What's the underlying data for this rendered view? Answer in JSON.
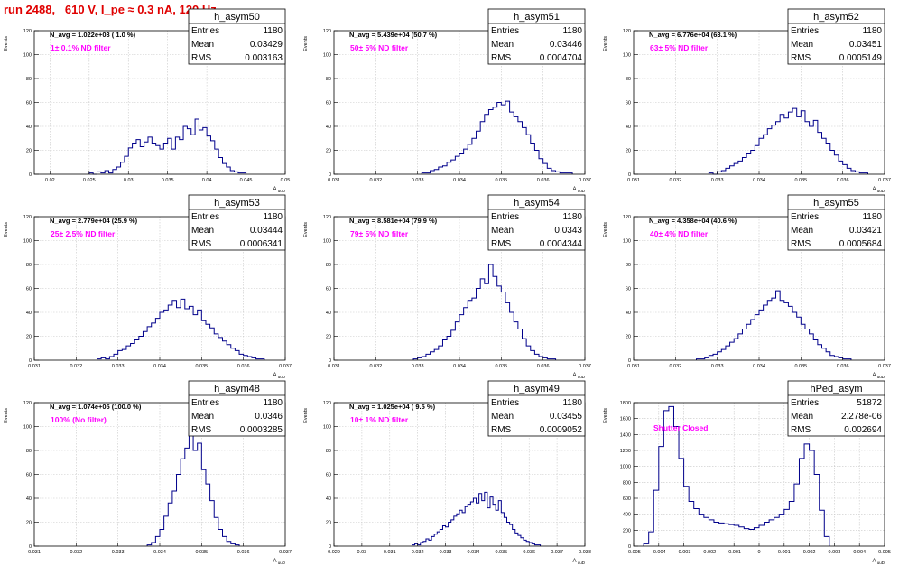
{
  "header": {
    "title": "run 2488,   610 V, I_pe ≈ 0.3 nA, 120 Hz"
  },
  "colors": {
    "title": "#e00000",
    "histogram": "#00008b",
    "annotation": "#ff00ff",
    "grid": "#c8c8c8",
    "frame": "#000000"
  },
  "chart_data": [
    {
      "type": "histogram",
      "name": "h_asym50",
      "n_avg": "N_avg = 1.022e+03 ( 1.0 %)",
      "filter_label": "1± 0.1% ND filter",
      "stats": {
        "entries_label": "Entries",
        "entries": "1180",
        "mean_label": "Mean",
        "mean": "0.03429",
        "rms_label": "RMS",
        "rms": "0.003163"
      },
      "ylabel": "Events",
      "xlabel": "A_uuD",
      "xlim": [
        0.018,
        0.05
      ],
      "ylim": [
        0,
        120
      ],
      "xticks": [
        0.02,
        0.025,
        0.03,
        0.035,
        0.04,
        0.045,
        0.05
      ],
      "xtick_labels": [
        "0.02",
        "0.025",
        "0.03",
        "0.035",
        "0.04",
        "0.045",
        "0.05"
      ],
      "yticks": [
        0,
        20,
        40,
        60,
        80,
        100,
        120
      ],
      "ytick_labels": [
        "0",
        "20",
        "40",
        "60",
        "80",
        "100",
        "120"
      ],
      "bin_start": 0.025,
      "bin_width": 0.0005,
      "values": [
        1,
        0,
        2,
        1,
        3,
        1,
        4,
        6,
        10,
        15,
        22,
        26,
        29,
        23,
        27,
        31,
        26,
        24,
        21,
        26,
        30,
        21,
        31,
        29,
        40,
        38,
        33,
        46,
        37,
        39,
        32,
        28,
        21,
        14,
        9,
        6,
        3,
        2,
        1,
        1
      ]
    },
    {
      "type": "histogram",
      "name": "h_asym51",
      "n_avg": "N_avg = 5.439e+04 (50.7 %)",
      "filter_label": "50± 5% ND filter",
      "stats": {
        "entries_label": "Entries",
        "entries": "1180",
        "mean_label": "Mean",
        "mean": "0.03446",
        "rms_label": "RMS",
        "rms": "0.0004704"
      },
      "ylabel": "Events",
      "xlabel": "A_uuD",
      "xlim": [
        0.031,
        0.037
      ],
      "ylim": [
        0,
        120
      ],
      "xticks": [
        0.031,
        0.032,
        0.033,
        0.034,
        0.035,
        0.036,
        0.037
      ],
      "xtick_labels": [
        "0.031",
        "0.032",
        "0.033",
        "0.034",
        "0.035",
        "0.036",
        "0.037"
      ],
      "yticks": [
        0,
        20,
        40,
        60,
        80,
        100,
        120
      ],
      "ytick_labels": [
        "0",
        "20",
        "40",
        "60",
        "80",
        "100",
        "120"
      ],
      "bin_start": 0.0331,
      "bin_width": 0.0001,
      "values": [
        1,
        1,
        3,
        4,
        6,
        7,
        10,
        12,
        15,
        17,
        21,
        25,
        30,
        36,
        44,
        50,
        54,
        56,
        60,
        58,
        61,
        52,
        48,
        44,
        39,
        33,
        26,
        20,
        13,
        9,
        5,
        3,
        2,
        1,
        1,
        1
      ]
    },
    {
      "type": "histogram",
      "name": "h_asym52",
      "n_avg": "N_avg = 6.776e+04 (63.1 %)",
      "filter_label": "63± 5% ND filter",
      "stats": {
        "entries_label": "Entries",
        "entries": "1180",
        "mean_label": "Mean",
        "mean": "0.03451",
        "rms_label": "RMS",
        "rms": "0.0005149"
      },
      "ylabel": "Events",
      "xlabel": "A_uuD",
      "xlim": [
        0.031,
        0.037
      ],
      "ylim": [
        0,
        120
      ],
      "xticks": [
        0.031,
        0.032,
        0.033,
        0.034,
        0.035,
        0.036,
        0.037
      ],
      "xtick_labels": [
        "0.031",
        "0.032",
        "0.033",
        "0.034",
        "0.035",
        "0.036",
        "0.037"
      ],
      "yticks": [
        0,
        20,
        40,
        60,
        80,
        100,
        120
      ],
      "ytick_labels": [
        "0",
        "20",
        "40",
        "60",
        "80",
        "100",
        "120"
      ],
      "bin_start": 0.0328,
      "bin_width": 0.0001,
      "values": [
        1,
        0,
        2,
        3,
        5,
        7,
        9,
        11,
        14,
        17,
        20,
        24,
        30,
        33,
        38,
        41,
        44,
        50,
        47,
        52,
        55,
        48,
        53,
        44,
        40,
        45,
        35,
        30,
        26,
        20,
        16,
        11,
        8,
        5,
        3,
        2,
        1,
        1
      ]
    },
    {
      "type": "histogram",
      "name": "h_asym53",
      "n_avg": "N_avg = 2.779e+04 (25.9 %)",
      "filter_label": "25± 2.5% ND filter",
      "stats": {
        "entries_label": "Entries",
        "entries": "1180",
        "mean_label": "Mean",
        "mean": "0.03444",
        "rms_label": "RMS",
        "rms": "0.0006341"
      },
      "ylabel": "Events",
      "xlabel": "A_uuD",
      "xlim": [
        0.031,
        0.037
      ],
      "ylim": [
        0,
        120
      ],
      "xticks": [
        0.031,
        0.032,
        0.033,
        0.034,
        0.035,
        0.036,
        0.037
      ],
      "xtick_labels": [
        "0.031",
        "0.032",
        "0.033",
        "0.034",
        "0.035",
        "0.036",
        "0.037"
      ],
      "yticks": [
        0,
        20,
        40,
        60,
        80,
        100,
        120
      ],
      "ytick_labels": [
        "0",
        "20",
        "40",
        "60",
        "80",
        "100",
        "120"
      ],
      "bin_start": 0.0325,
      "bin_width": 0.0001,
      "values": [
        1,
        2,
        1,
        3,
        5,
        8,
        9,
        12,
        14,
        17,
        20,
        24,
        28,
        31,
        35,
        40,
        42,
        46,
        50,
        44,
        51,
        43,
        45,
        38,
        42,
        33,
        30,
        27,
        22,
        19,
        16,
        13,
        10,
        8,
        5,
        4,
        3,
        2,
        1,
        1
      ]
    },
    {
      "type": "histogram",
      "name": "h_asym54",
      "n_avg": "N_avg = 8.581e+04 (79.9 %)",
      "filter_label": "79± 5% ND filter",
      "stats": {
        "entries_label": "Entries",
        "entries": "1180",
        "mean_label": "Mean",
        "mean": "0.0343",
        "rms_label": "RMS",
        "rms": "0.0004344"
      },
      "ylabel": "Events",
      "xlabel": "A_uuD",
      "xlim": [
        0.031,
        0.037
      ],
      "ylim": [
        0,
        120
      ],
      "xticks": [
        0.031,
        0.032,
        0.033,
        0.034,
        0.035,
        0.036,
        0.037
      ],
      "xtick_labels": [
        "0.031",
        "0.032",
        "0.033",
        "0.034",
        "0.035",
        "0.036",
        "0.037"
      ],
      "yticks": [
        0,
        20,
        40,
        60,
        80,
        100,
        120
      ],
      "ytick_labels": [
        "0",
        "20",
        "40",
        "60",
        "80",
        "100",
        "120"
      ],
      "bin_start": 0.0329,
      "bin_width": 0.0001,
      "values": [
        1,
        2,
        3,
        5,
        7,
        9,
        12,
        17,
        20,
        25,
        32,
        38,
        44,
        50,
        52,
        60,
        68,
        64,
        80,
        70,
        62,
        57,
        48,
        40,
        32,
        26,
        18,
        12,
        8,
        5,
        3,
        2,
        1,
        1
      ]
    },
    {
      "type": "histogram",
      "name": "h_asym55",
      "n_avg": "N_avg = 4.358e+04 (40.6 %)",
      "filter_label": "40± 4% ND filter",
      "stats": {
        "entries_label": "Entries",
        "entries": "1180",
        "mean_label": "Mean",
        "mean": "0.03421",
        "rms_label": "RMS",
        "rms": "0.0005684"
      },
      "ylabel": "Events",
      "xlabel": "A_uuD",
      "xlim": [
        0.031,
        0.037
      ],
      "ylim": [
        0,
        120
      ],
      "xticks": [
        0.031,
        0.032,
        0.033,
        0.034,
        0.035,
        0.036,
        0.037
      ],
      "xtick_labels": [
        "0.031",
        "0.032",
        "0.033",
        "0.034",
        "0.035",
        "0.036",
        "0.037"
      ],
      "yticks": [
        0,
        20,
        40,
        60,
        80,
        100,
        120
      ],
      "ytick_labels": [
        "0",
        "20",
        "40",
        "60",
        "80",
        "100",
        "120"
      ],
      "bin_start": 0.0325,
      "bin_width": 0.0001,
      "values": [
        1,
        1,
        2,
        4,
        5,
        7,
        9,
        12,
        15,
        18,
        22,
        26,
        30,
        34,
        38,
        42,
        46,
        50,
        52,
        58,
        50,
        48,
        45,
        40,
        36,
        30,
        26,
        22,
        17,
        13,
        10,
        7,
        4,
        3,
        2,
        1,
        1
      ]
    },
    {
      "type": "histogram",
      "name": "h_asym48",
      "n_avg": "N_avg = 1.074e+05 (100.0 %)",
      "filter_label": "100% (No filter)",
      "stats": {
        "entries_label": "Entries",
        "entries": "1180",
        "mean_label": "Mean",
        "mean": "0.0346",
        "rms_label": "RMS",
        "rms": "0.0003285"
      },
      "ylabel": "Events",
      "xlabel": "A_uuD",
      "xlim": [
        0.031,
        0.037
      ],
      "ylim": [
        0,
        120
      ],
      "xticks": [
        0.031,
        0.032,
        0.033,
        0.034,
        0.035,
        0.036,
        0.037
      ],
      "xtick_labels": [
        "0.031",
        "0.032",
        "0.033",
        "0.034",
        "0.035",
        "0.036",
        "0.037"
      ],
      "yticks": [
        0,
        20,
        40,
        60,
        80,
        100,
        120
      ],
      "ytick_labels": [
        "0",
        "20",
        "40",
        "60",
        "80",
        "100",
        "120"
      ],
      "bin_start": 0.0337,
      "bin_width": 0.0001,
      "values": [
        1,
        3,
        8,
        14,
        25,
        36,
        46,
        60,
        73,
        82,
        95,
        80,
        86,
        64,
        52,
        38,
        24,
        14,
        8,
        4,
        2,
        1
      ]
    },
    {
      "type": "histogram",
      "name": "h_asym49",
      "n_avg": "N_avg = 1.025e+04 ( 9.5 %)",
      "filter_label": "10± 1% ND filter",
      "stats": {
        "entries_label": "Entries",
        "entries": "1180",
        "mean_label": "Mean",
        "mean": "0.03455",
        "rms_label": "RMS",
        "rms": "0.0009052"
      },
      "ylabel": "Events",
      "xlabel": "A_uuD",
      "xlim": [
        0.029,
        0.038
      ],
      "ylim": [
        0,
        120
      ],
      "xticks": [
        0.029,
        0.03,
        0.031,
        0.032,
        0.033,
        0.034,
        0.035,
        0.036,
        0.037,
        0.038
      ],
      "xtick_labels": [
        "0.029",
        "0.03",
        "0.031",
        "0.032",
        "0.033",
        "0.034",
        "0.035",
        "0.036",
        "0.037",
        "0.038"
      ],
      "yticks": [
        0,
        20,
        40,
        60,
        80,
        100,
        120
      ],
      "ytick_labels": [
        "0",
        "20",
        "40",
        "60",
        "80",
        "100",
        "120"
      ],
      "bin_start": 0.0318,
      "bin_width": 0.0001,
      "values": [
        1,
        2,
        1,
        3,
        4,
        6,
        5,
        8,
        10,
        12,
        14,
        17,
        16,
        20,
        22,
        25,
        27,
        30,
        28,
        33,
        35,
        37,
        40,
        36,
        44,
        38,
        45,
        32,
        41,
        35,
        30,
        38,
        28,
        24,
        20,
        18,
        14,
        11,
        9,
        7,
        5,
        4,
        3,
        2,
        1,
        1
      ]
    },
    {
      "type": "histogram",
      "name": "hPed_asym",
      "n_avg": "",
      "filter_label": "Shutter Closed",
      "stats": {
        "entries_label": "Entries",
        "entries": "51872",
        "mean_label": "Mean",
        "mean": "2.278e-06",
        "rms_label": "RMS",
        "rms": "0.002694"
      },
      "ylabel": "Events",
      "xlabel": "A_uuD",
      "xlim": [
        -0.005,
        0.005
      ],
      "ylim": [
        0,
        1800
      ],
      "xticks": [
        -0.005,
        -0.004,
        -0.003,
        -0.002,
        -0.001,
        0,
        0.001,
        0.002,
        0.003,
        0.004,
        0.005
      ],
      "xtick_labels": [
        "-0.005",
        "-0.004",
        "-0.003",
        "-0.002",
        "-0.001",
        "0",
        "0.001",
        "0.002",
        "0.003",
        "0.004",
        "0.005"
      ],
      "yticks": [
        0,
        200,
        400,
        600,
        800,
        1000,
        1200,
        1400,
        1600,
        1800
      ],
      "ytick_labels": [
        "0",
        "200",
        "400",
        "600",
        "800",
        "1000",
        "1200",
        "1400",
        "1600",
        "1800"
      ],
      "bin_start": -0.0046,
      "bin_width": 0.0002,
      "values": [
        30,
        180,
        700,
        1250,
        1700,
        1750,
        1500,
        1100,
        750,
        560,
        470,
        400,
        360,
        330,
        300,
        290,
        280,
        270,
        260,
        240,
        220,
        210,
        230,
        260,
        300,
        330,
        360,
        400,
        460,
        560,
        780,
        1100,
        1280,
        1200,
        900,
        450,
        120
      ]
    }
  ]
}
